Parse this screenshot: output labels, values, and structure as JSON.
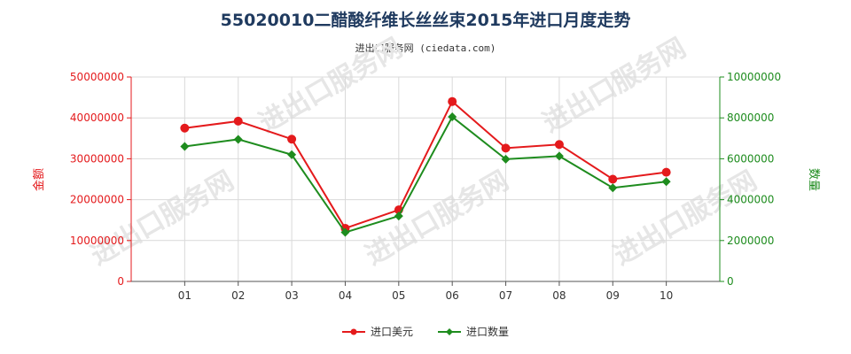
{
  "title": "55020010二醋酸纤维长丝丝束2015年进口月度走势",
  "subtitle": "进出口服务网 (ciedata.com)",
  "watermark": "进出口服务网",
  "colors": {
    "amount": "#e41a1c",
    "quantity": "#1e8c1e",
    "grid": "#d9d9d9"
  },
  "chart_data": {
    "type": "line",
    "categories": [
      "01",
      "02",
      "03",
      "04",
      "05",
      "06",
      "07",
      "08",
      "09",
      "10"
    ],
    "ylabel_left": "金额",
    "ylabel_right": "数量",
    "ylim_left": [
      0,
      50000000
    ],
    "ylim_right": [
      0,
      10000000
    ],
    "yticks_left": [
      "0",
      "10000000",
      "20000000",
      "30000000",
      "40000000",
      "50000000"
    ],
    "yticks_right": [
      "0",
      "2000000",
      "4000000",
      "6000000",
      "8000000",
      "10000000"
    ],
    "grid": true,
    "legend_position": "bottom",
    "series": [
      {
        "name": "进口美元",
        "axis": "left",
        "marker": "circle",
        "values": [
          37500000,
          39200000,
          34800000,
          13000000,
          17500000,
          44000000,
          32600000,
          33500000,
          25000000,
          26700000
        ]
      },
      {
        "name": "进口数量",
        "axis": "right",
        "marker": "diamond",
        "values": [
          6600000,
          6950000,
          6200000,
          2400000,
          3200000,
          8050000,
          5980000,
          6130000,
          4580000,
          4880000
        ]
      }
    ]
  }
}
